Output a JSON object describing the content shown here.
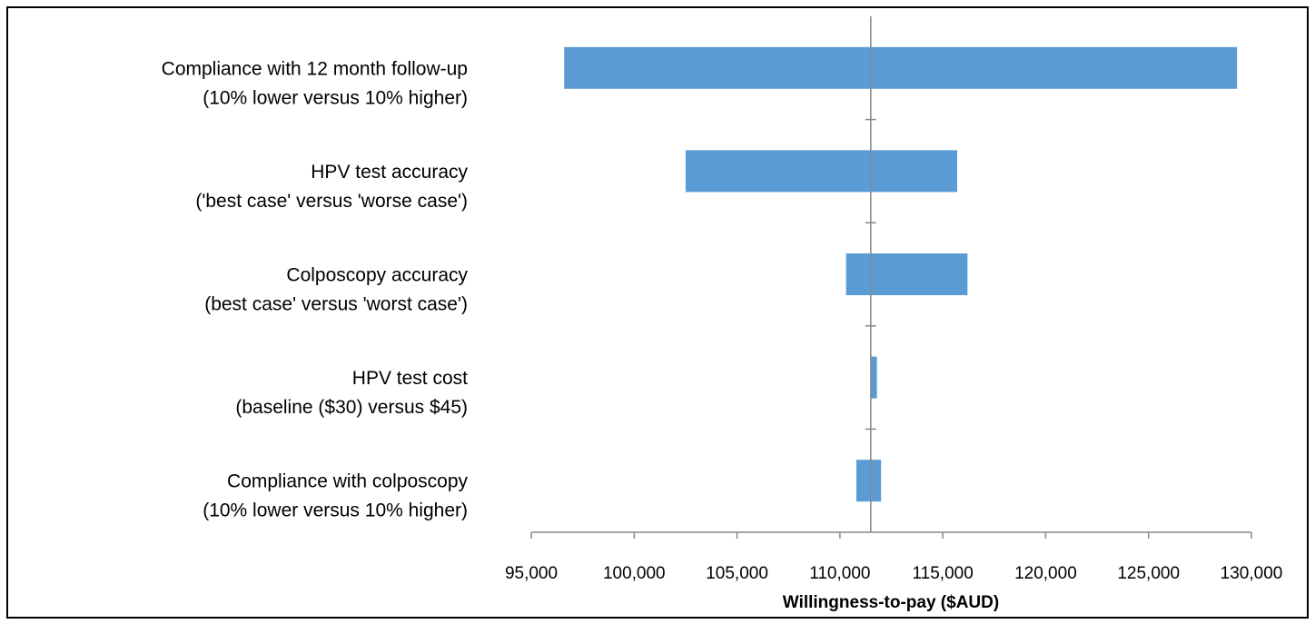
{
  "chart_data": {
    "type": "tornado",
    "categories": [
      [
        "Compliance with 12 month follow-up",
        "(10% lower versus 10% higher)"
      ],
      [
        "HPV test accuracy",
        "('best case' versus 'worse case')"
      ],
      [
        "Colposcopy accuracy",
        "(best case' versus 'worst case')"
      ],
      [
        "HPV test cost",
        "(baseline ($30) versus $45)"
      ],
      [
        "Compliance with colposcopy",
        "(10% lower versus 10% higher)"
      ]
    ],
    "low": [
      96600,
      102500,
      110300,
      111500,
      110800
    ],
    "high": [
      129300,
      115700,
      116200,
      111800,
      112000
    ],
    "baseline": 111500,
    "color": "#5b9bd5",
    "x_label": "Willingness-to-pay ($AUD)",
    "xlim": [
      95000,
      130000
    ],
    "xticks": [
      {
        "value": 95000,
        "label": "95,000"
      },
      {
        "value": 100000,
        "label": "100,000"
      },
      {
        "value": 105000,
        "label": "105,000"
      },
      {
        "value": 110000,
        "label": "110,000"
      },
      {
        "value": 115000,
        "label": "115,000"
      },
      {
        "value": 120000,
        "label": "120,000"
      },
      {
        "value": 125000,
        "label": "125,000"
      },
      {
        "value": 130000,
        "label": "130,000"
      }
    ]
  }
}
